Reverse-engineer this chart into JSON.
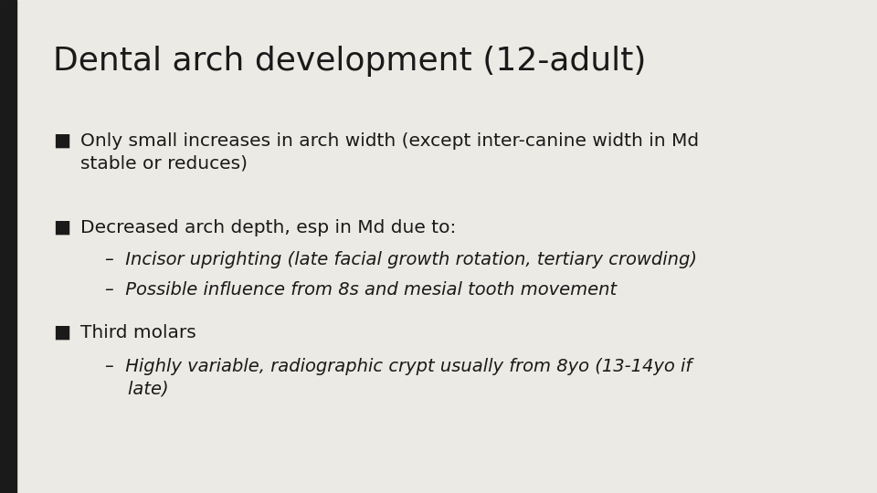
{
  "title": "Dental arch development (12-adult)",
  "background_color": "#eceae4",
  "left_bar_color": "#1a1a1a",
  "title_color": "#1a1a1a",
  "text_color": "#1a1a1a",
  "title_fontsize": 26,
  "body_fontsize": 14.5,
  "sub_fontsize": 14.0,
  "bullet_char": "■",
  "bullet1": "Only small increases in arch width (except inter-canine width in Md\nstable or reduces)",
  "bullet2": "Decreased arch depth, esp in Md due to:",
  "sub2a": "–  Incisor uprighting (late facial growth rotation, tertiary crowding)",
  "sub2b": "–  Possible influence from 8s and mesial tooth movement",
  "bullet3": "Third molars",
  "sub3a": "–  Highly variable, radiographic crypt usually from 8yo (13-14yo if\n    late)"
}
